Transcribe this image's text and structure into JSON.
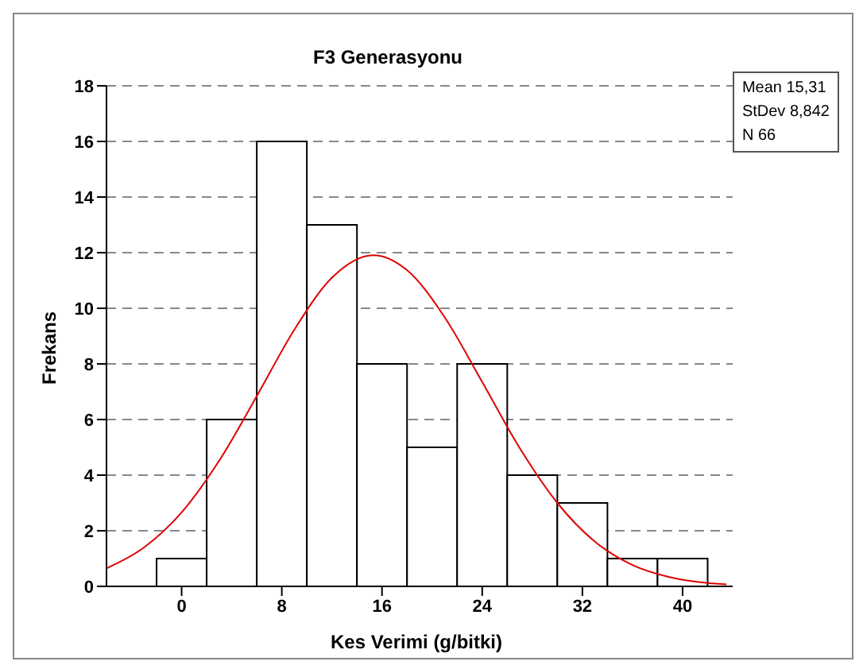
{
  "chart_data": {
    "type": "histogram",
    "title": "F3 Generasyonu",
    "xlabel": "Kes Verimi (g/bitki)",
    "ylabel": "Frekans",
    "series": [
      {
        "color": "#ffffff",
        "bins": [
          -2,
          2,
          6,
          10,
          14,
          18,
          22,
          26,
          30,
          34,
          38,
          42
        ],
        "values": [
          1,
          6,
          16,
          13,
          8,
          5,
          8,
          4,
          3,
          1,
          1
        ]
      },
      {
        "type": "line",
        "color": "#e00000",
        "x": [
          -6,
          -3,
          0,
          3,
          6,
          9,
          12,
          15.31,
          18,
          21,
          24,
          27,
          30,
          33,
          36,
          39,
          42,
          43.5
        ],
        "values": [
          0.65,
          1.4,
          2.66,
          4.52,
          6.84,
          9.23,
          11.1,
          11.91,
          11.37,
          9.68,
          7.35,
          4.97,
          3.0,
          1.61,
          0.77,
          0.33,
          0.12,
          0.07
        ]
      }
    ],
    "xlim": [
      -6,
      44
    ],
    "xticks": [
      0,
      8,
      16,
      24,
      32,
      40
    ],
    "ylim": [
      0,
      18
    ],
    "yticks": [
      0,
      2,
      4,
      6,
      8,
      10,
      12,
      14,
      16,
      18
    ],
    "grid": "y",
    "marker": "none",
    "annotations": [
      "Mean 15,31",
      "StDev 8,842",
      "N 66"
    ]
  }
}
